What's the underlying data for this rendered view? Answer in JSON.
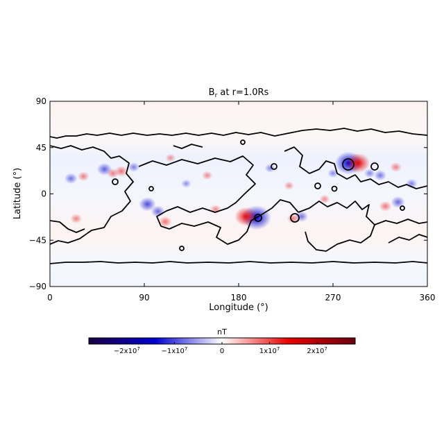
{
  "chart_data": {
    "type": "heatmap",
    "title": "B",
    "title_subscript": "r",
    "title_suffix": " at r=1.0Rs",
    "xlabel": "Longitude (°)",
    "ylabel": "Latitude (°)",
    "xlim": [
      0,
      360
    ],
    "ylim": [
      -90,
      90
    ],
    "xticks": [
      0,
      90,
      180,
      270,
      360
    ],
    "yticks": [
      -90,
      -45,
      0,
      45,
      90
    ],
    "contour_level": 0,
    "colorbar": {
      "label": "nT",
      "range": [
        -28000000,
        28000000
      ],
      "ticks": [
        {
          "value": -20000000,
          "label": "−2x10",
          "exp": "7"
        },
        {
          "value": -10000000,
          "label": "−1x10",
          "exp": "7"
        },
        {
          "value": 0,
          "label": "0",
          "exp": ""
        },
        {
          "value": 10000000,
          "label": "1x10",
          "exp": "7"
        },
        {
          "value": 20000000,
          "label": "2x10",
          "exp": "7"
        }
      ],
      "colors": [
        "#1a0040",
        "#0000d0",
        "#ffffff",
        "#e80000",
        "#6a0010"
      ]
    },
    "features": [
      {
        "lon": 197,
        "lat": -23,
        "value": -22000000
      },
      {
        "lon": 187,
        "lat": -22,
        "value": 15000000
      },
      {
        "lon": 285,
        "lat": 30,
        "value": -20000000
      },
      {
        "lon": 294,
        "lat": 30,
        "value": 16000000
      },
      {
        "lon": 93,
        "lat": -10,
        "value": -9000000
      },
      {
        "lon": 103,
        "lat": -17,
        "value": -6000000
      },
      {
        "lon": 110,
        "lat": -27,
        "value": 5000000
      },
      {
        "lon": 52,
        "lat": 24,
        "value": -7000000
      },
      {
        "lon": 60,
        "lat": 20,
        "value": 4000000
      },
      {
        "lon": 68,
        "lat": 22,
        "value": 5000000
      },
      {
        "lon": 20,
        "lat": 15,
        "value": -5000000
      },
      {
        "lon": 32,
        "lat": 17,
        "value": 3500000
      },
      {
        "lon": 80,
        "lat": 26,
        "value": -3500000
      },
      {
        "lon": 25,
        "lat": -24,
        "value": 3500000
      },
      {
        "lon": 150,
        "lat": 18,
        "value": 2500000
      },
      {
        "lon": 158,
        "lat": -15,
        "value": 3000000
      },
      {
        "lon": 240,
        "lat": -22,
        "value": -5000000
      },
      {
        "lon": 232,
        "lat": -24,
        "value": 4000000
      },
      {
        "lon": 332,
        "lat": -8,
        "value": -6000000
      },
      {
        "lon": 320,
        "lat": -12,
        "value": 4500000
      },
      {
        "lon": 315,
        "lat": 18,
        "value": -4500000
      },
      {
        "lon": 330,
        "lat": 26,
        "value": 3500000
      },
      {
        "lon": 345,
        "lat": 10,
        "value": -3500000
      },
      {
        "lon": 305,
        "lat": 20,
        "value": -3000000
      },
      {
        "lon": 210,
        "lat": 25,
        "value": -2500000
      },
      {
        "lon": 262,
        "lat": -5,
        "value": 2500000
      },
      {
        "lon": 270,
        "lat": 20,
        "value": -2500000
      },
      {
        "lon": 130,
        "lat": 10,
        "value": -2000000
      },
      {
        "lon": 228,
        "lat": 8,
        "value": 2000000
      },
      {
        "lon": 115,
        "lat": 35,
        "value": 2000000
      }
    ]
  }
}
